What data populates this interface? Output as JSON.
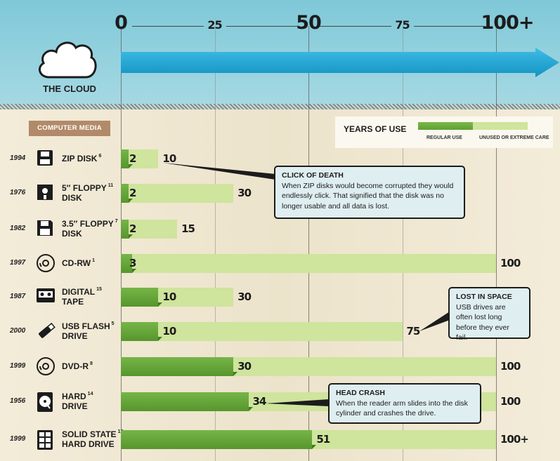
{
  "header": {
    "cloud_label": "THE CLOUD",
    "ticks": [
      "0",
      "25",
      "50",
      "75",
      "100+"
    ]
  },
  "media_header": "COMPUTER MEDIA",
  "legend": {
    "title": "YEARS OF USE",
    "regular_label": "REGULAR USE",
    "unused_label": "UNUSED OR EXTREME CARE"
  },
  "colors": {
    "regular": "#5ea032",
    "unused": "#cfe49c",
    "arrow": "#1ca2cf",
    "header_bg": "#8ecfdd"
  },
  "callouts": [
    {
      "title": "CLICK OF DEATH",
      "text": "When ZIP disks would become corrupted they would endlessly click. That signified that the disk was no longer usable and all data is lost."
    },
    {
      "title": "LOST IN SPACE",
      "text": "USB drives are often lost long before they ever fail."
    },
    {
      "title": "HEAD CRASH",
      "text": "When the reader arm slides into the disk cylinder and crashes the drive."
    }
  ],
  "chart_data": {
    "type": "bar",
    "orientation": "horizontal",
    "x_range": [
      0,
      100
    ],
    "x_ticks": [
      "0",
      "25",
      "50",
      "75",
      "100+"
    ],
    "categories": [
      "ZIP DISK",
      "5″ FLOPPY DISK",
      "3.5″ FLOPPY DISK",
      "CD-RW",
      "DIGITAL TAPE",
      "USB FLASH DRIVE",
      "DVD-R",
      "HARD DRIVE",
      "SOLID STATE HARD DRIVE"
    ],
    "rows": [
      {
        "year": "1994",
        "name": "ZIP DISK",
        "name2": "",
        "sup": "6",
        "icon": "zip-disk-icon",
        "regular": 2,
        "total": 10,
        "regular_label": "2",
        "total_label": "10"
      },
      {
        "year": "1976",
        "name": "5″ FLOPPY",
        "name2": "DISK",
        "sup": "11",
        "icon": "floppy-5-icon",
        "regular": 2,
        "total": 30,
        "regular_label": "2",
        "total_label": "30"
      },
      {
        "year": "1982",
        "name": "3.5″ FLOPPY",
        "name2": "DISK",
        "sup": "7",
        "icon": "floppy-35-icon",
        "regular": 2,
        "total": 15,
        "regular_label": "2",
        "total_label": "15"
      },
      {
        "year": "1997",
        "name": "CD-RW",
        "name2": "",
        "sup": "1",
        "icon": "cd-icon",
        "regular": 3,
        "total": 100,
        "regular_label": "3",
        "total_label": "100"
      },
      {
        "year": "1987",
        "name": "DIGITAL",
        "name2": "TAPE",
        "sup": "15",
        "icon": "tape-icon",
        "regular": 10,
        "total": 30,
        "regular_label": "10",
        "total_label": "30"
      },
      {
        "year": "2000",
        "name": "USB FLASH",
        "name2": "DRIVE",
        "sup": "5",
        "icon": "usb-icon",
        "regular": 10,
        "total": 75,
        "regular_label": "10",
        "total_label": "75"
      },
      {
        "year": "1999",
        "name": "DVD-R",
        "name2": "",
        "sup": "8",
        "icon": "dvd-icon",
        "regular": 30,
        "total": 100,
        "regular_label": "30",
        "total_label": "100"
      },
      {
        "year": "1956",
        "name": "HARD",
        "name2": "DRIVE",
        "sup": "14",
        "icon": "hard-drive-icon",
        "regular": 34,
        "total": 100,
        "regular_label": "34",
        "total_label": "100"
      },
      {
        "year": "1999",
        "name": "SOLID STATE",
        "name2": "HARD DRIVE",
        "sup": "13",
        "icon": "ssd-icon",
        "regular": 51,
        "total": 100,
        "regular_label": "51",
        "total_label": "100+"
      }
    ],
    "legend": [
      "REGULAR USE",
      "UNUSED OR EXTREME CARE"
    ]
  }
}
